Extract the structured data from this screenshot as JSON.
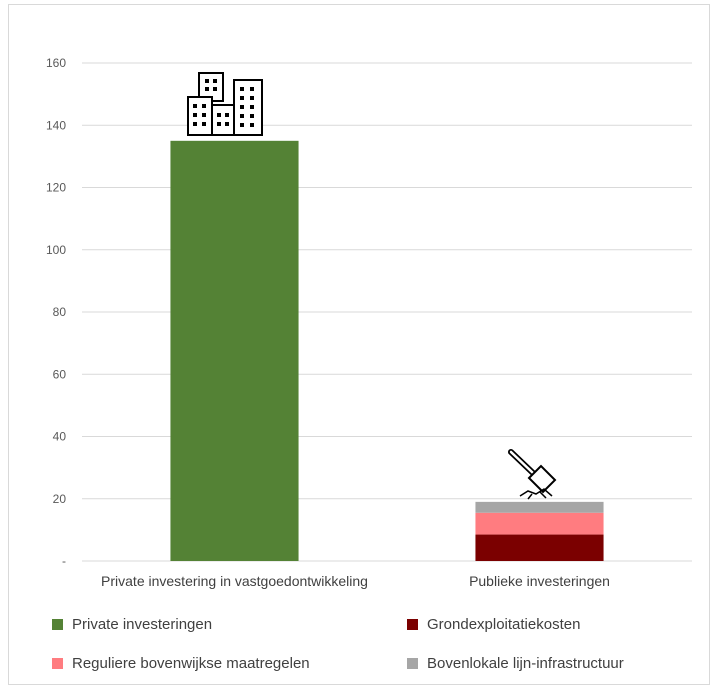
{
  "chart_data": {
    "type": "bar",
    "stacked": true,
    "categories": [
      "Private investering in vastgoedontwikkeling",
      "Publieke investeringen"
    ],
    "series": [
      {
        "name": "Private investeringen",
        "color": "#548235",
        "values": [
          135,
          0
        ]
      },
      {
        "name": "Grondexploitatiekosten",
        "color": "#7b0000",
        "values": [
          0,
          8.5
        ]
      },
      {
        "name": "Reguliere bovenwijkse maatregelen",
        "color": "#ff7c80",
        "values": [
          0,
          7
        ]
      },
      {
        "name": "Bovenlokale lijn-infrastructuur",
        "color": "#a6a6a6",
        "values": [
          0,
          3.5
        ]
      }
    ],
    "yticks": [
      "-",
      "20",
      "40",
      "60",
      "80",
      "100",
      "120",
      "140",
      "160"
    ],
    "ylim": [
      0,
      160
    ],
    "grid": true,
    "legend_position": "bottom",
    "icons": [
      "buildings-icon",
      "hammer-icon"
    ]
  }
}
